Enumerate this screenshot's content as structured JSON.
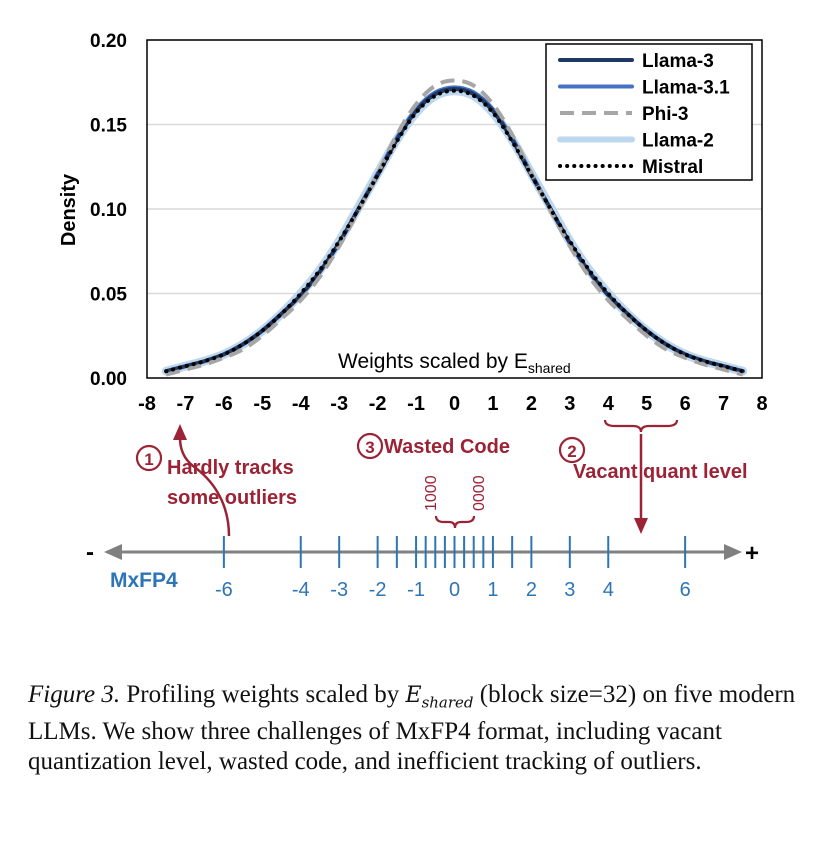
{
  "chart_data": {
    "type": "line",
    "xlabel": "",
    "ylabel": "Density",
    "xlim": [
      -8,
      8
    ],
    "ylim": [
      0,
      0.2
    ],
    "xticks": [
      "-8",
      "-7",
      "-6",
      "-5",
      "-4",
      "-3",
      "-2",
      "-1",
      "0",
      "1",
      "2",
      "3",
      "4",
      "5",
      "6",
      "7",
      "8"
    ],
    "yticks": [
      "0.00",
      "0.05",
      "0.10",
      "0.15",
      "0.20"
    ],
    "grid": "horizontal",
    "legend_position": "top-right",
    "inset_label_main": "Weights scaled by E",
    "inset_label_sub": "shared",
    "x": [
      -7.5,
      -7,
      -6.5,
      -6,
      -5.5,
      -5,
      -4.5,
      -4,
      -3.5,
      -3,
      -2.5,
      -2,
      -1.5,
      -1,
      -0.5,
      0,
      0.5,
      1,
      1.5,
      2,
      2.5,
      3,
      3.5,
      4,
      4.5,
      5,
      5.5,
      6,
      6.5,
      7,
      7.5
    ],
    "series": [
      {
        "name": "Llama-3",
        "color": "#1f3864",
        "dash": "solid",
        "width": 4,
        "values": [
          0.004,
          0.007,
          0.01,
          0.014,
          0.02,
          0.028,
          0.038,
          0.049,
          0.063,
          0.08,
          0.1,
          0.12,
          0.141,
          0.158,
          0.168,
          0.171,
          0.168,
          0.158,
          0.141,
          0.12,
          0.1,
          0.08,
          0.063,
          0.049,
          0.038,
          0.028,
          0.02,
          0.014,
          0.01,
          0.007,
          0.004
        ]
      },
      {
        "name": "Llama-3.1",
        "color": "#4472c4",
        "dash": "solid",
        "width": 4,
        "values": [
          0.004,
          0.007,
          0.01,
          0.014,
          0.02,
          0.028,
          0.038,
          0.049,
          0.063,
          0.08,
          0.1,
          0.121,
          0.142,
          0.159,
          0.169,
          0.172,
          0.169,
          0.159,
          0.142,
          0.121,
          0.1,
          0.08,
          0.063,
          0.049,
          0.038,
          0.028,
          0.02,
          0.014,
          0.01,
          0.007,
          0.004
        ]
      },
      {
        "name": "Phi-3",
        "color": "#a6a6a6",
        "dash": "dashed",
        "width": 4,
        "values": [
          0.002,
          0.005,
          0.008,
          0.012,
          0.017,
          0.025,
          0.035,
          0.046,
          0.06,
          0.078,
          0.099,
          0.121,
          0.144,
          0.162,
          0.173,
          0.176,
          0.173,
          0.162,
          0.144,
          0.121,
          0.099,
          0.078,
          0.06,
          0.046,
          0.035,
          0.025,
          0.017,
          0.012,
          0.008,
          0.005,
          0.002
        ]
      },
      {
        "name": "Llama-2",
        "color": "#bdd7ee",
        "dash": "solid",
        "width": 9,
        "values": [
          0.004,
          0.007,
          0.01,
          0.014,
          0.02,
          0.028,
          0.038,
          0.05,
          0.064,
          0.081,
          0.101,
          0.121,
          0.141,
          0.157,
          0.167,
          0.17,
          0.167,
          0.157,
          0.141,
          0.121,
          0.101,
          0.081,
          0.064,
          0.05,
          0.038,
          0.028,
          0.02,
          0.014,
          0.01,
          0.007,
          0.004
        ]
      },
      {
        "name": "Mistral",
        "color": "#000000",
        "dash": "dotted",
        "width": 4,
        "values": [
          0.004,
          0.007,
          0.01,
          0.014,
          0.02,
          0.028,
          0.038,
          0.05,
          0.064,
          0.081,
          0.1,
          0.12,
          0.14,
          0.157,
          0.167,
          0.17,
          0.167,
          0.157,
          0.14,
          0.12,
          0.1,
          0.081,
          0.064,
          0.05,
          0.038,
          0.028,
          0.02,
          0.014,
          0.01,
          0.007,
          0.004
        ]
      }
    ]
  },
  "annotations": {
    "challenge1": {
      "badge": "1",
      "line1": "Hardly tracks",
      "line2": "some outliers"
    },
    "challenge2": {
      "badge": "2",
      "text": "Vacant quant level"
    },
    "challenge3": {
      "badge": "3",
      "text": "Wasted Code",
      "code_left": "1000",
      "code_right": "0000"
    }
  },
  "number_line": {
    "format": "MxFP4",
    "minus": "-",
    "plus": "+",
    "ticks": [
      -6,
      -4,
      -3,
      -2,
      -1.5,
      -1,
      -0.75,
      -0.5,
      -0.25,
      0,
      0.25,
      0.5,
      0.75,
      1,
      1.5,
      2,
      3,
      4,
      6
    ],
    "labels": [
      {
        "v": -6,
        "t": "-6"
      },
      {
        "v": -4,
        "t": "-4"
      },
      {
        "v": -3,
        "t": "-3"
      },
      {
        "v": -2,
        "t": "-2"
      },
      {
        "v": -1,
        "t": "-1"
      },
      {
        "v": 0,
        "t": "0"
      },
      {
        "v": 1,
        "t": "1"
      },
      {
        "v": 2,
        "t": "2"
      },
      {
        "v": 3,
        "t": "3"
      },
      {
        "v": 4,
        "t": "4"
      },
      {
        "v": 6,
        "t": "6"
      }
    ]
  },
  "colors": {
    "accent_red": "#9b2335",
    "format_blue": "#2e75b6",
    "axis_gray": "#808080"
  },
  "caption": {
    "lead": "Figure 3.",
    "before_math": " Profiling weights scaled by ",
    "math_main": "E",
    "math_sub": "shared",
    "after_math": " (block size=32) on five modern LLMs. We show three challenges of MxFP4 format, including vacant quantization level, wasted code, and inefficient tracking of outliers."
  }
}
